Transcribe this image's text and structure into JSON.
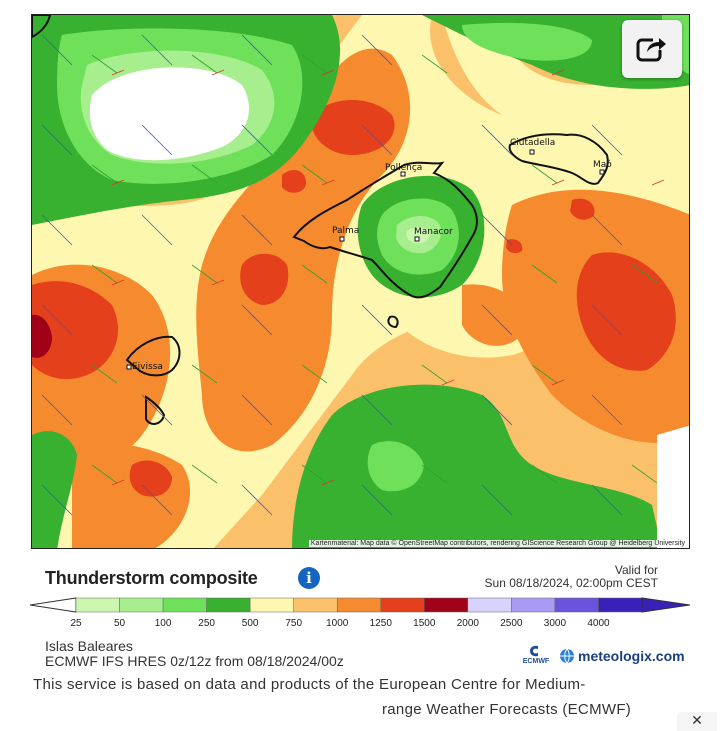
{
  "map": {
    "attribution": "Kartenmaterial: Map data © OpenStreetMap contributors, rendering GIScience Research Group @ Heidelberg University",
    "cities": [
      {
        "name": "Pollença"
      },
      {
        "name": "Palma"
      },
      {
        "name": "Manacor"
      },
      {
        "name": "Ciutadella"
      },
      {
        "name": "Maó"
      },
      {
        "name": "Eivissa"
      }
    ],
    "share_icon": "share-icon"
  },
  "legend": {
    "title": "Thunderstorm composite",
    "info_icon": "info-icon",
    "valid_label": "Valid for",
    "valid_time": "Sun 08/18/2024, 02:00pm CEST",
    "ticks": [
      "25",
      "50",
      "100",
      "250",
      "500",
      "750",
      "1000",
      "1250",
      "1500",
      "2000",
      "2500",
      "3000",
      "4000"
    ],
    "colors": [
      "#ccf5b0",
      "#a6ee8e",
      "#6fe05a",
      "#38b030",
      "#fdf7b0",
      "#fbc16a",
      "#f58b2e",
      "#e3401b",
      "#a00018",
      "#d6d3ff",
      "#a99bf3",
      "#6c53dd",
      "#3820b8"
    ]
  },
  "info": {
    "region": "Islas Baleares",
    "model": "ECMWF IFS HRES 0z/12z from 08/18/2024/00z",
    "ecmwf_label": "ECMWF",
    "brand": "meteologix.com"
  },
  "disclaimer": {
    "line1": "This service is based on data and products of the European Centre for Medium-",
    "line2": "range Weather Forecasts (ECMWF)"
  },
  "close_label": "✕"
}
